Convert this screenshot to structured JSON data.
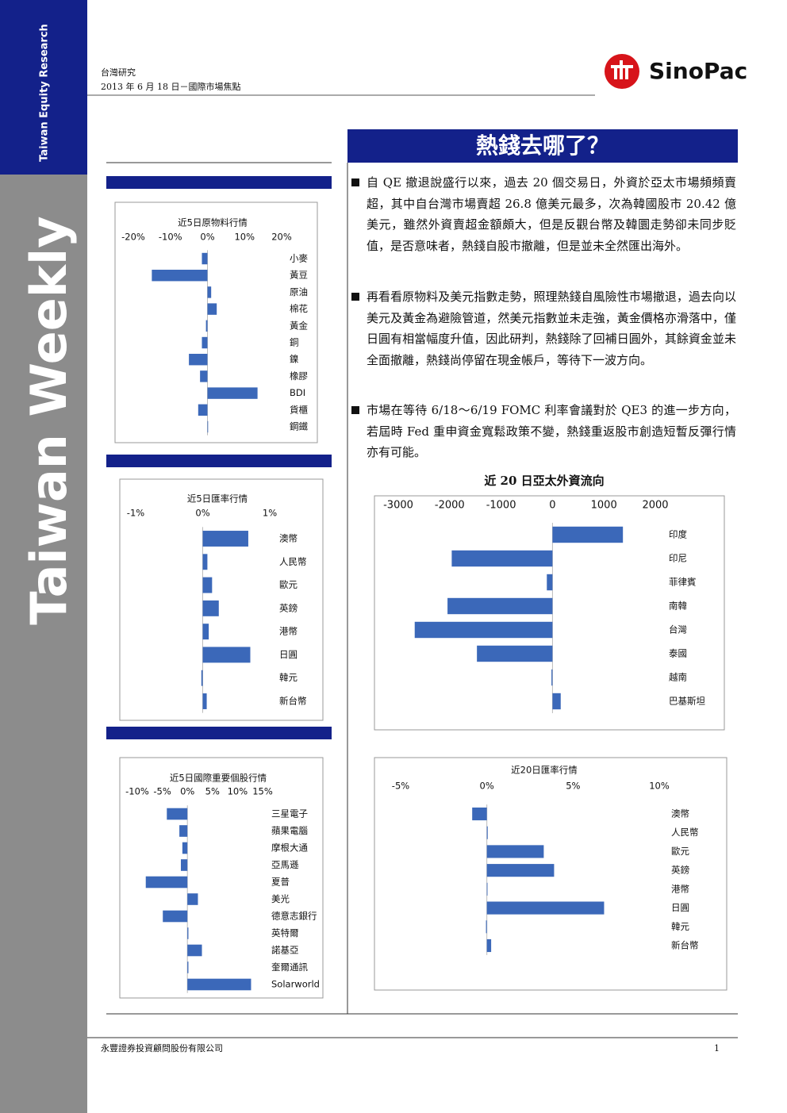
{
  "sidebar": {
    "top": "Taiwan Equity Research",
    "main": "Taiwan Weekly"
  },
  "header": {
    "section": "台灣研究",
    "date_line": "2013 年 6 月 18 日－國際市場焦點",
    "logo": "SinoPac"
  },
  "title": "熱錢去哪了？",
  "bullets": [
    "自 QE 撤退說盛行以來，過去 20 個交易日，外資於亞太市場頻頻賣超，其中自台灣市場賣超 26.8 億美元最多，次為韓國股市 20.42 億美元，雖然外資賣超金額頗大，但是反觀台幣及韓圜走勢卻未同步貶值，是否意味者，熱錢自股市撤離，但是並未全然匯出海外。",
    "再看看原物料及美元指數走勢，照理熱錢自風險性市場撤退，過去向以美元及黃金為避險管道，然美元指數並未走強，黃金價格亦滑落中，僅日圓有相當幅度升值，因此研判，熱錢除了回補日圓外，其餘資金並未全面撤離，熱錢尚停留在現金帳戶，等待下一波方向。",
    "市場在等待 6/18～6/19 FOMC 利率會議對於 QE3 的進一步方向，若屆時 Fed 重申資金寬鬆政策不變，熱錢重返股市創造短暫反彈行情亦有可能。"
  ],
  "footer": {
    "company": "永豐證券投資顧問股份有限公司",
    "page": "1"
  },
  "chart_data": [
    {
      "type": "bar",
      "orientation": "horizontal",
      "title": "近5日原物料行情",
      "color": "#3b68b9",
      "grid": false,
      "categories": [
        "小麥",
        "黃豆",
        "原油",
        "棉花",
        "黃金",
        "銅",
        "鎳",
        "橡膠",
        "BDI",
        "貨櫃",
        "鋼鐵"
      ],
      "values": [
        -1.5,
        -15,
        1,
        2.5,
        -0.4,
        -1.5,
        -5,
        -2,
        13.5,
        -2.5,
        0
      ],
      "xlim": [
        -20,
        20
      ],
      "xticks": [
        {
          "value": -20,
          "label": "-20%"
        },
        {
          "value": -10,
          "label": "-10%"
        },
        {
          "value": 0,
          "label": "0%"
        },
        {
          "value": 10,
          "label": "10%"
        },
        {
          "value": 20,
          "label": "20%"
        }
      ]
    },
    {
      "type": "bar",
      "orientation": "horizontal",
      "title": "近5日匯率行情",
      "color": "#3b68b9",
      "grid": false,
      "categories": [
        "澳幣",
        "人民幣",
        "歐元",
        "英鎊",
        "港幣",
        "日圓",
        "韓元",
        "新台幣"
      ],
      "values": [
        0.68,
        0.07,
        0.14,
        0.24,
        0.09,
        0.71,
        -0.02,
        0.06
      ],
      "xlim": [
        -1,
        1
      ],
      "xticks": [
        {
          "value": -1,
          "label": "-1%"
        },
        {
          "value": 0,
          "label": "0%"
        },
        {
          "value": 1,
          "label": "1%"
        }
      ]
    },
    {
      "type": "bar",
      "orientation": "horizontal",
      "title": "近5日國際重要個股行情",
      "color": "#3b68b9",
      "grid": false,
      "categories": [
        "三星電子",
        "蘋果電腦",
        "摩根大通",
        "亞馬遜",
        "夏普",
        "美光",
        "德意志銀行",
        "英特爾",
        "諾基亞",
        "奎爾通訊",
        "Solarworld"
      ],
      "values": [
        -4.1,
        -1.6,
        -1,
        -1.3,
        -8.3,
        2.1,
        -4.9,
        0.2,
        2.9,
        0.2,
        12.7
      ],
      "xlim": [
        -10,
        15
      ],
      "xticks": [
        {
          "value": -10,
          "label": "-10%"
        },
        {
          "value": -5,
          "label": "-5%"
        },
        {
          "value": 0,
          "label": "0%"
        },
        {
          "value": 5,
          "label": "5%"
        },
        {
          "value": 10,
          "label": "10%"
        },
        {
          "value": 15,
          "label": "15%"
        }
      ]
    },
    {
      "type": "bar",
      "orientation": "horizontal",
      "title": "近 20 日亞太外資流向",
      "color": "#3b68b9",
      "grid": false,
      "categories": [
        "印度",
        "印尼",
        "菲律賓",
        "南韓",
        "台灣",
        "泰國",
        "越南",
        "巴基斯坦"
      ],
      "values": [
        1370,
        -1960,
        -110,
        -2042,
        -2680,
        -1470,
        -20,
        160
      ],
      "xlim": [
        -3000,
        2000
      ],
      "xticks": [
        -3000,
        -2000,
        -1000,
        0,
        1000,
        2000
      ]
    },
    {
      "type": "bar",
      "orientation": "horizontal",
      "title": "近20日匯率行情",
      "color": "#3b68b9",
      "grid": false,
      "categories": [
        "澳幣",
        "人民幣",
        "歐元",
        "英鎊",
        "港幣",
        "日圓",
        "韓元",
        "新台幣"
      ],
      "values": [
        -0.85,
        0.05,
        3.3,
        3.9,
        0.02,
        6.8,
        -0.05,
        0.25
      ],
      "xlim": [
        -5,
        10
      ],
      "xticks": [
        {
          "value": -5,
          "label": "-5%"
        },
        {
          "value": 0,
          "label": "0%"
        },
        {
          "value": 5,
          "label": "5%"
        },
        {
          "value": 10,
          "label": "10%"
        }
      ]
    }
  ]
}
